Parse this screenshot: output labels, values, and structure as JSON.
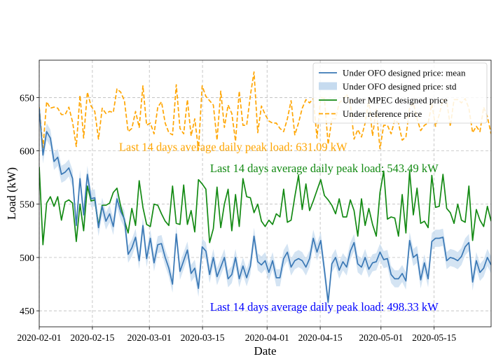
{
  "chart_data": {
    "type": "line",
    "xlabel": "Date",
    "ylabel": "Load (kW)",
    "x_start": "2020-02-01",
    "x_end": "2020-05-30",
    "xlim": [
      "2020-02-01",
      "2020-05-30"
    ],
    "ylim": [
      435,
      685
    ],
    "yticks": [
      450,
      500,
      550,
      600,
      650
    ],
    "xticks": [
      "2020-02-01",
      "2020-02-15",
      "2020-03-01",
      "2020-03-15",
      "2020-04-01",
      "2020-04-15",
      "2020-05-01",
      "2020-05-15"
    ],
    "grid": true,
    "legend_position": "top-right",
    "series": [
      {
        "name": "Under OFO designed price: mean",
        "color": "#3a78b5",
        "style": "solid",
        "values": [
          640,
          596,
          618,
          612,
          590,
          594,
          578,
          580,
          584,
          574,
          530,
          574,
          540,
          578,
          555,
          556,
          528,
          548,
          534,
          541,
          529,
          555,
          543,
          536,
          503,
          509,
          519,
          497,
          530,
          499,
          518,
          495,
          512,
          513,
          500,
          490,
          475,
          522,
          487,
          497,
          507,
          485,
          490,
          471,
          510,
          506,
          484,
          500,
          482,
          491,
          500,
          480,
          484,
          500,
          480,
          492,
          481,
          492,
          520,
          496,
          493,
          497,
          486,
          497,
          481,
          481,
          499,
          505,
          491,
          497,
          499,
          497,
          491,
          499,
          518,
          505,
          516,
          488,
          458,
          494,
          500,
          488,
          496,
          491,
          506,
          514,
          494,
          491,
          500,
          489,
          495,
          496,
          505,
          498,
          499,
          484,
          480,
          480,
          485,
          478,
          516,
          500,
          503,
          479,
          495,
          480,
          515,
          518,
          518,
          519,
          497,
          500,
          499,
          497,
          501,
          510,
          514,
          477,
          497,
          486,
          490,
          500,
          493
        ],
        "std_band": 8
      },
      {
        "name": "Under OFO designed price: std",
        "color": "#c6dbef",
        "style": "band"
      },
      {
        "name": "Under MPEC designed price",
        "color": "#138a13",
        "style": "solid",
        "values": [
          585,
          512,
          551,
          557,
          548,
          557,
          535,
          552,
          554,
          551,
          515,
          550,
          525,
          567,
          553,
          554,
          530,
          549,
          549,
          551,
          561,
          565,
          548,
          535,
          523,
          546,
          530,
          572,
          547,
          531,
          529,
          550,
          549,
          541,
          534,
          530,
          567,
          532,
          531,
          568,
          531,
          544,
          524,
          573,
          569,
          564,
          514,
          527,
          566,
          528,
          550,
          564,
          525,
          559,
          529,
          574,
          557,
          556,
          542,
          550,
          534,
          529,
          535,
          531,
          541,
          538,
          564,
          533,
          535,
          557,
          577,
          545,
          569,
          544,
          553,
          563,
          573,
          558,
          554,
          549,
          541,
          555,
          538,
          538,
          554,
          544,
          520,
          555,
          530,
          546,
          531,
          520,
          561,
          581,
          536,
          538,
          537,
          520,
          559,
          523,
          581,
          540,
          565,
          532,
          534,
          528,
          577,
          547,
          548,
          578,
          546,
          542,
          532,
          550,
          535,
          533,
          567,
          516,
          545,
          535,
          529,
          548,
          534
        ]
      },
      {
        "name": "Under reference price",
        "color": "#ffa500",
        "style": "dashed",
        "values": [
          641,
          603,
          646,
          640,
          641,
          640,
          634,
          634,
          641,
          627,
          604,
          652,
          612,
          655,
          642,
          637,
          611,
          640,
          635,
          637,
          636,
          658,
          655,
          647,
          618,
          621,
          637,
          622,
          661,
          624,
          626,
          616,
          641,
          646,
          626,
          617,
          615,
          662,
          621,
          616,
          648,
          614,
          630,
          601,
          661,
          651,
          647,
          643,
          610,
          656,
          622,
          643,
          635,
          609,
          656,
          624,
          624,
          652,
          674,
          617,
          642,
          634,
          628,
          626,
          626,
          621,
          618,
          630,
          647,
          615,
          626,
          640,
          648,
          645,
          649,
          612,
          650,
          649,
          606,
          630,
          630,
          645,
          648,
          653,
          644,
          611,
          620,
          613,
          626,
          648,
          614,
          639,
          602,
          624,
          624,
          616,
          629,
          626,
          610,
          613,
          640,
          645,
          630,
          619,
          624,
          626,
          644,
          623,
          634,
          648,
          647,
          623,
          648,
          648,
          645,
          649,
          640,
          617,
          623,
          618,
          641,
          632,
          616
        ]
      }
    ],
    "annotations": [
      {
        "text": "Last 14 days average daily peak load: 631.09 kW",
        "color": "#ffa500",
        "x": "2020-02-22",
        "y": 600
      },
      {
        "text": "Last 14 days average daily peak load: 543.49 kW",
        "color": "#138a13",
        "x": "2020-03-17",
        "y": 580
      },
      {
        "text": "Last 14 days average daily peak load: 498.33 kW",
        "color": "#0000ff",
        "x": "2020-03-17",
        "y": 450
      }
    ]
  }
}
